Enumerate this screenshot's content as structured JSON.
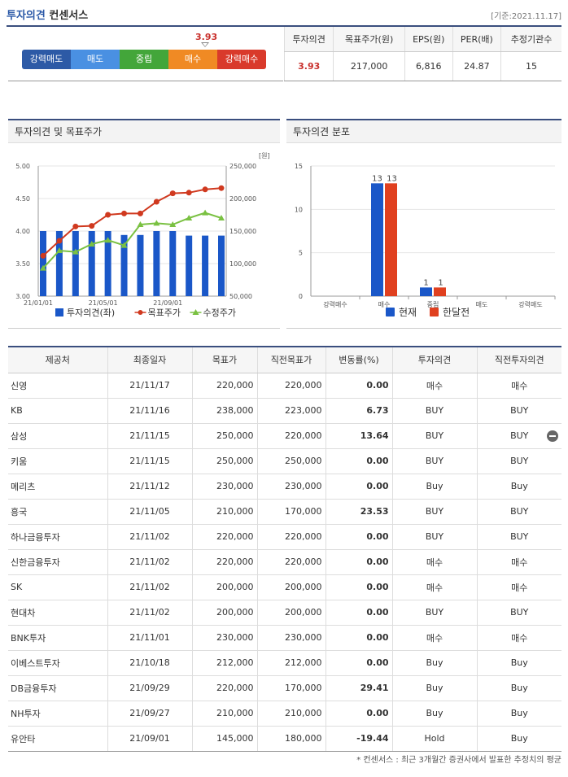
{
  "header": {
    "title_main": "투자의견",
    "title_rest": " 컨센서스",
    "date": "[기준:2021.11.17]"
  },
  "opinion_scale": {
    "value": "3.93",
    "marker_fraction": 0.7,
    "segments": [
      {
        "label": "강력매도",
        "color": "#2d5aa6"
      },
      {
        "label": "매도",
        "color": "#4a90e2"
      },
      {
        "label": "중립",
        "color": "#43a63a"
      },
      {
        "label": "매수",
        "color": "#f08a24"
      },
      {
        "label": "강력매수",
        "color": "#d93a2b"
      }
    ]
  },
  "summary": {
    "headers": [
      "투자의견",
      "목표주가(원)",
      "EPS(원)",
      "PER(배)",
      "추정기관수"
    ],
    "values": [
      "3.93",
      "217,000",
      "6,816",
      "24.87",
      "15"
    ]
  },
  "panels": {
    "left_title": "투자의견 및 목표주가",
    "right_title": "투자의견 분포"
  },
  "chart_data": [
    {
      "type": "bar",
      "title": "투자의견 및 목표주가",
      "left_axis": {
        "ticks": [
          "5.00",
          "4.50",
          "4.00",
          "3.50",
          "3.00"
        ],
        "range": [
          3.0,
          5.0
        ]
      },
      "right_axis": {
        "unit": "[원]",
        "ticks": [
          "250,000",
          "200,000",
          "150,000",
          "100,000",
          "50,000"
        ],
        "range": [
          50000,
          250000
        ]
      },
      "x_ticks": [
        "21/01/01",
        "21/05/01",
        "21/09/01"
      ],
      "x_tick_index": [
        0,
        4,
        8
      ],
      "series": [
        {
          "name": "투자의견(좌)",
          "kind": "bar",
          "axis": "left",
          "color": "#1a57c8",
          "values": [
            4.0,
            4.0,
            4.0,
            4.0,
            4.0,
            3.94,
            3.94,
            4.0,
            4.0,
            3.93,
            3.93,
            3.93
          ]
        },
        {
          "name": "목표주가",
          "kind": "line",
          "axis": "right",
          "color": "#d0391f",
          "values": [
            112000,
            135000,
            157000,
            158000,
            175000,
            177000,
            177000,
            195000,
            208000,
            209000,
            214000,
            216000
          ]
        },
        {
          "name": "수정주가",
          "kind": "line",
          "axis": "right",
          "color": "#7ac142",
          "values": [
            93000,
            120000,
            118000,
            130000,
            136000,
            128000,
            160000,
            162000,
            160000,
            170000,
            178000,
            170000
          ]
        }
      ],
      "legend": "bottom"
    },
    {
      "type": "bar",
      "title": "투자의견 분포",
      "categories": [
        "강력매수",
        "매수",
        "중립",
        "매도",
        "강력매도"
      ],
      "y_ticks": [
        "15",
        "10",
        "5",
        "0"
      ],
      "ylim": [
        0,
        15
      ],
      "series": [
        {
          "name": "현재",
          "color": "#1a57c8",
          "values": [
            0,
            13,
            1,
            0,
            0
          ]
        },
        {
          "name": "한달전",
          "color": "#e0401f",
          "values": [
            0,
            13,
            1,
            0,
            0
          ]
        }
      ],
      "data_labels": [
        {
          "category": 1,
          "series": 0,
          "text": "13"
        },
        {
          "category": 1,
          "series": 1,
          "text": "13"
        },
        {
          "category": 2,
          "series": 0,
          "text": "1"
        },
        {
          "category": 2,
          "series": 1,
          "text": "1"
        }
      ],
      "legend": "bottom"
    }
  ],
  "table": {
    "headers": [
      "제공처",
      "최종일자",
      "목표가",
      "직전목표가",
      "변동률(%)",
      "투자의견",
      "직전투자의견"
    ],
    "rows": [
      [
        "신영",
        "21/11/17",
        "220,000",
        "220,000",
        "0.00",
        "매수",
        "매수"
      ],
      [
        "KB",
        "21/11/16",
        "238,000",
        "223,000",
        "6.73",
        "BUY",
        "BUY"
      ],
      [
        "삼성",
        "21/11/15",
        "250,000",
        "220,000",
        "13.64",
        "BUY",
        "BUY"
      ],
      [
        "키움",
        "21/11/15",
        "250,000",
        "250,000",
        "0.00",
        "BUY",
        "BUY"
      ],
      [
        "메리츠",
        "21/11/12",
        "230,000",
        "230,000",
        "0.00",
        "Buy",
        "Buy"
      ],
      [
        "흥국",
        "21/11/05",
        "210,000",
        "170,000",
        "23.53",
        "BUY",
        "BUY"
      ],
      [
        "하나금융투자",
        "21/11/02",
        "220,000",
        "220,000",
        "0.00",
        "BUY",
        "BUY"
      ],
      [
        "신한금융투자",
        "21/11/02",
        "220,000",
        "220,000",
        "0.00",
        "매수",
        "매수"
      ],
      [
        "SK",
        "21/11/02",
        "200,000",
        "200,000",
        "0.00",
        "매수",
        "매수"
      ],
      [
        "현대차",
        "21/11/02",
        "200,000",
        "200,000",
        "0.00",
        "BUY",
        "BUY"
      ],
      [
        "BNK투자",
        "21/11/01",
        "230,000",
        "230,000",
        "0.00",
        "매수",
        "매수"
      ],
      [
        "이베스트투자",
        "21/10/18",
        "212,000",
        "212,000",
        "0.00",
        "Buy",
        "Buy"
      ],
      [
        "DB금융투자",
        "21/09/29",
        "220,000",
        "170,000",
        "29.41",
        "Buy",
        "Buy"
      ],
      [
        "NH투자",
        "21/09/27",
        "210,000",
        "210,000",
        "0.00",
        "Buy",
        "Buy"
      ],
      [
        "유안타",
        "21/09/01",
        "145,000",
        "180,000",
        "-19.44",
        "Hold",
        "Buy"
      ]
    ]
  },
  "note": "* 컨센서스 : 최근 3개월간 증권사에서 발표한 추정치의 평균"
}
